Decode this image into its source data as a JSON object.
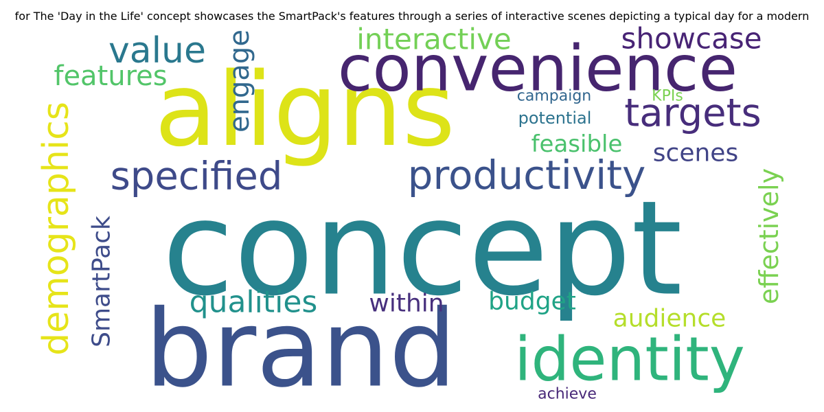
{
  "title": "for The 'Day in the Life' concept showcases the SmartPack's features through a series of interactive scenes depicting a typical day for a modern",
  "words": [
    {
      "text": "concept",
      "color": "#26828e"
    },
    {
      "text": "brand",
      "color": "#3b528b"
    },
    {
      "text": "aligns",
      "color": "#dde318"
    },
    {
      "text": "convenience",
      "color": "#46256f"
    },
    {
      "text": "identity",
      "color": "#2fb47c"
    },
    {
      "text": "productivity",
      "color": "#3b528b"
    },
    {
      "text": "specified",
      "color": "#3e4a89"
    },
    {
      "text": "targets",
      "color": "#472d7b"
    },
    {
      "text": "value",
      "color": "#2a788e"
    },
    {
      "text": "demographics",
      "color": "#e6e419"
    },
    {
      "text": "interactive",
      "color": "#73d056"
    },
    {
      "text": "showcase",
      "color": "#482475"
    },
    {
      "text": "features",
      "color": "#52c569"
    },
    {
      "text": "engage",
      "color": "#31688e"
    },
    {
      "text": "qualities",
      "color": "#21918c"
    },
    {
      "text": "effectively",
      "color": "#7ad151"
    },
    {
      "text": "SmartPack",
      "color": "#3e4c8a"
    },
    {
      "text": "audience",
      "color": "#b5de2b"
    },
    {
      "text": "within",
      "color": "#472f7d"
    },
    {
      "text": "budget",
      "color": "#20a386"
    },
    {
      "text": "scenes",
      "color": "#414487"
    },
    {
      "text": "feasible",
      "color": "#4ac16d"
    },
    {
      "text": "potential",
      "color": "#2c738e"
    },
    {
      "text": "campaign",
      "color": "#31668e"
    },
    {
      "text": "KPIs",
      "color": "#7ad151"
    },
    {
      "text": "achieve",
      "color": "#482878"
    }
  ]
}
